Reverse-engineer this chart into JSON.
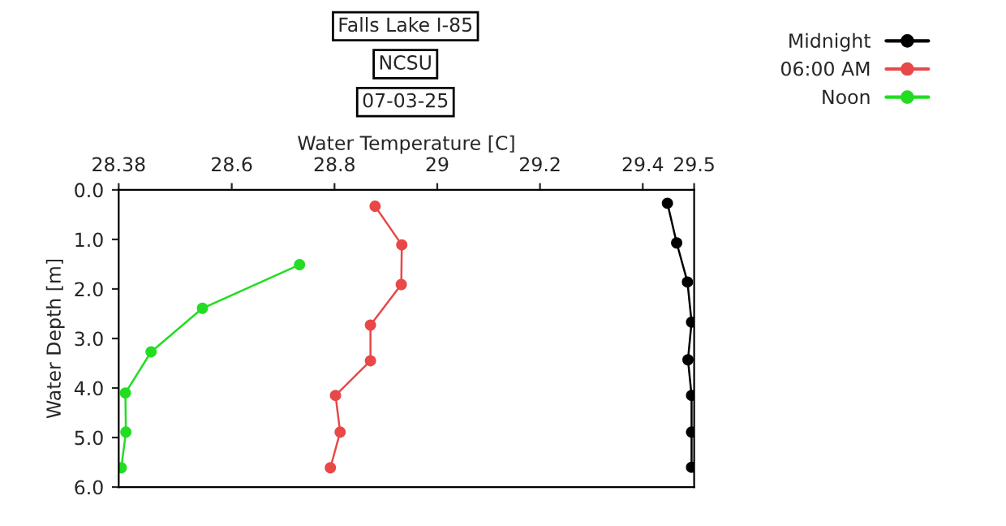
{
  "chart_data": {
    "type": "line",
    "title": "Falls Lake I-85",
    "subtitle": "NCSU",
    "annotations": [
      "07-03-25"
    ],
    "xlabel": "Water Temperature [C]",
    "ylabel": "Water Depth [m]",
    "xlim": [
      28.38,
      29.5
    ],
    "xticks": [
      28.38,
      28.6,
      28.8,
      29,
      29.2,
      29.4,
      29.5
    ],
    "ylim": [
      6.0,
      0.0
    ],
    "yticks": [
      {
        "value": 0,
        "label": "0.0"
      },
      {
        "value": 1,
        "label": "1.0"
      },
      {
        "value": 2,
        "label": "2.0"
      },
      {
        "value": 3,
        "label": "3.0"
      },
      {
        "value": 4,
        "label": "4.0"
      },
      {
        "value": 5,
        "label": "5.0"
      },
      {
        "value": 6,
        "label": "6.0"
      }
    ],
    "grid": false,
    "legend": "top right",
    "marker": "circle",
    "line_style": "solid",
    "series": [
      {
        "name": "Midnight",
        "color": "#000000",
        "x": [
          29.448,
          29.466,
          29.487,
          29.495,
          29.488,
          29.495,
          29.495,
          29.495
        ],
        "values": [
          0.27,
          1.07,
          1.86,
          2.67,
          3.43,
          4.15,
          4.89,
          5.6
        ]
      },
      {
        "name": "06:00 AM",
        "color": "#e84848",
        "x": [
          28.879,
          28.931,
          28.93,
          28.87,
          28.87,
          28.802,
          28.811,
          28.792
        ],
        "values": [
          0.33,
          1.11,
          1.91,
          2.73,
          3.45,
          4.15,
          4.89,
          5.61
        ]
      },
      {
        "name": "Noon",
        "color": "#22dd22",
        "x": [
          28.732,
          28.543,
          28.443,
          28.393,
          28.394,
          28.385
        ],
        "values": [
          1.51,
          2.39,
          3.27,
          4.1,
          4.89,
          5.61
        ]
      }
    ]
  }
}
